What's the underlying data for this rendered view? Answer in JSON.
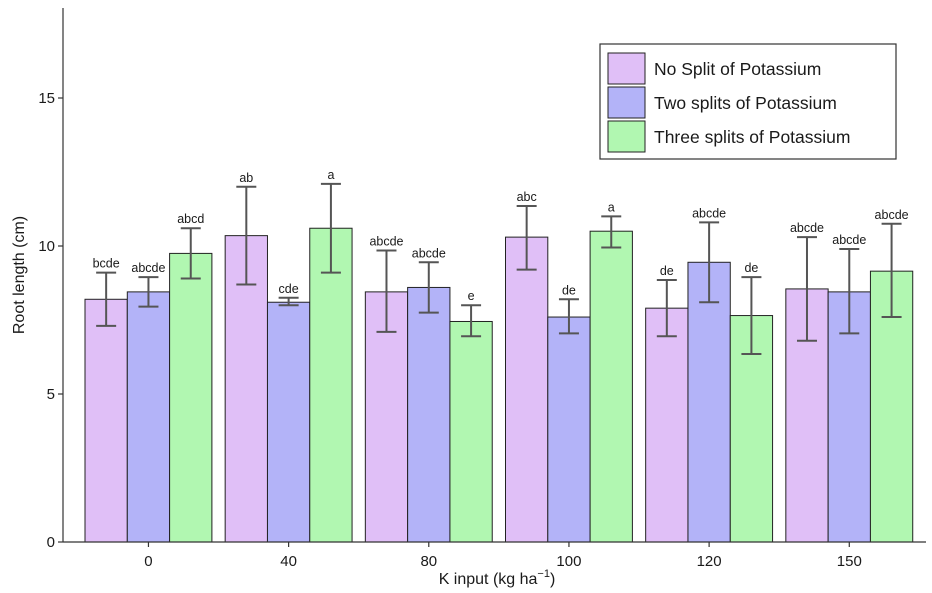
{
  "chart_data": {
    "type": "bar",
    "xlabel": "K input (kg ha",
    "xlabel_sup": "−1",
    "xlabel_suffix": ")",
    "ylabel": "Root length (cm)",
    "ylim": [
      0,
      18
    ],
    "yticks": [
      0,
      5,
      10,
      15
    ],
    "categories": [
      "0",
      "40",
      "80",
      "100",
      "120",
      "150"
    ],
    "legend_position": "top-right",
    "series": [
      {
        "name": "No Split of Potassium",
        "color": "#e0bff7",
        "values": [
          8.2,
          10.35,
          8.45,
          10.3,
          7.9,
          8.55
        ],
        "err_low": [
          7.3,
          8.7,
          7.1,
          9.2,
          6.95,
          6.8
        ],
        "err_high": [
          9.1,
          12.0,
          9.85,
          11.35,
          8.85,
          10.3
        ],
        "letters": [
          "bcde",
          "ab",
          "abcde",
          "abc",
          "de",
          "abcde"
        ]
      },
      {
        "name": "Two splits of Potassium",
        "color": "#b3b3f8",
        "values": [
          8.45,
          8.1,
          8.6,
          7.6,
          9.45,
          8.45
        ],
        "err_low": [
          7.95,
          8.0,
          7.75,
          7.05,
          8.1,
          7.05
        ],
        "err_high": [
          8.95,
          8.25,
          9.45,
          8.2,
          10.8,
          9.9
        ],
        "letters": [
          "abcde",
          "cde",
          "abcde",
          "de",
          "abcde",
          "abcde"
        ]
      },
      {
        "name": "Three splits of Potassium",
        "color": "#b1f7b1",
        "values": [
          9.75,
          10.6,
          7.45,
          10.5,
          7.65,
          9.15
        ],
        "err_low": [
          8.9,
          9.1,
          6.95,
          9.95,
          6.35,
          7.6
        ],
        "err_high": [
          10.6,
          12.1,
          8.0,
          11.0,
          8.95,
          10.75
        ],
        "letters": [
          "abcd",
          "a",
          "e",
          "a",
          "de",
          "abcde"
        ]
      }
    ]
  }
}
